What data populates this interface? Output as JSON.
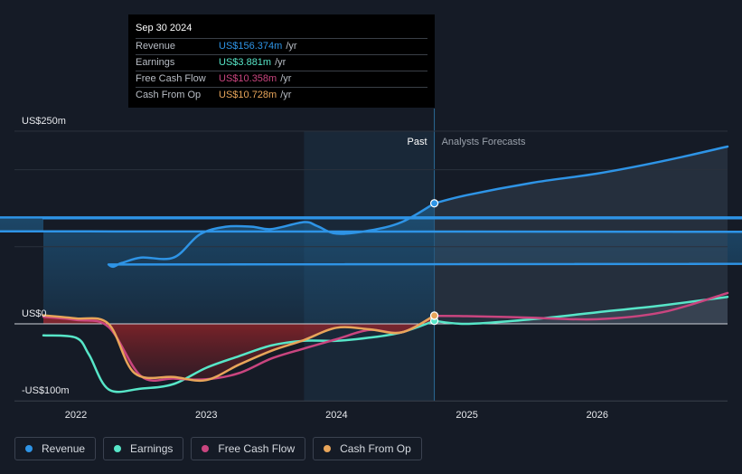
{
  "chart_data": {
    "type": "line",
    "x_start": 2021.75,
    "x_end": 2027.0,
    "divider_x": 2024.75,
    "highlight_start": 2023.75,
    "ylim": [
      -100,
      250
    ],
    "y_ticks": [
      {
        "label": "US$250m",
        "value": 250
      },
      {
        "label": "US$0",
        "value": 0
      },
      {
        "label": "-US$100m",
        "value": -100
      }
    ],
    "gridlines": [
      250,
      200,
      100,
      0
    ],
    "x_ticks": [
      {
        "label": "2022",
        "value": 2022.0
      },
      {
        "label": "2023",
        "value": 2023.0
      },
      {
        "label": "2024",
        "value": 2024.0
      },
      {
        "label": "2025",
        "value": 2025.0
      },
      {
        "label": "2026",
        "value": 2026.0
      }
    ],
    "past_label": "Past",
    "forecast_label": "Analysts Forecasts",
    "series": [
      {
        "name": "Revenue",
        "color": "#2e94e6",
        "area": true,
        "points": [
          [
            2021.75,
            137
          ],
          [
            2021.85,
            138
          ],
          [
            222.0,
            138
          ],
          [
            2022.1,
            120
          ],
          [
            2022.25,
            77
          ],
          [
            2022.35,
            79
          ],
          [
            2022.5,
            86
          ],
          [
            2022.75,
            86
          ],
          [
            2022.95,
            116
          ],
          [
            2023.15,
            126
          ],
          [
            2023.35,
            126
          ],
          [
            2023.5,
            123
          ],
          [
            2023.75,
            132
          ],
          [
            2023.85,
            127
          ],
          [
            2024.0,
            117
          ],
          [
            2024.25,
            121
          ],
          [
            2024.5,
            132
          ],
          [
            2024.75,
            156.374
          ]
        ],
        "forecast": [
          [
            2024.75,
            156.374
          ],
          [
            2025.0,
            167
          ],
          [
            2025.5,
            183
          ],
          [
            2026.0,
            195
          ],
          [
            2026.5,
            211
          ],
          [
            2027.0,
            230
          ]
        ]
      },
      {
        "name": "Earnings",
        "color": "#57e6c8",
        "points": [
          [
            2021.75,
            -15
          ],
          [
            2022.0,
            -18
          ],
          [
            2022.1,
            -40
          ],
          [
            2022.25,
            -85
          ],
          [
            2022.5,
            -84
          ],
          [
            2022.75,
            -78
          ],
          [
            2023.0,
            -57
          ],
          [
            2023.25,
            -42
          ],
          [
            2023.5,
            -28
          ],
          [
            2023.75,
            -22
          ],
          [
            2024.0,
            -22
          ],
          [
            2024.25,
            -18
          ],
          [
            2024.5,
            -11
          ],
          [
            2024.75,
            3.881
          ]
        ],
        "forecast": [
          [
            2024.75,
            3.881
          ],
          [
            2025.0,
            0
          ],
          [
            2025.5,
            6
          ],
          [
            2026.0,
            15
          ],
          [
            2026.5,
            24
          ],
          [
            2027.0,
            35
          ]
        ]
      },
      {
        "name": "Free Cash Flow",
        "color": "#c9457f",
        "points": [
          [
            2021.75,
            9
          ],
          [
            2022.0,
            5
          ],
          [
            2022.25,
            -4
          ],
          [
            2022.5,
            -68
          ],
          [
            2022.75,
            -71
          ],
          [
            2023.0,
            -72
          ],
          [
            2023.25,
            -64
          ],
          [
            2023.5,
            -45
          ],
          [
            2023.75,
            -32
          ],
          [
            2024.0,
            -20
          ],
          [
            2024.25,
            -8
          ],
          [
            2024.5,
            -11
          ],
          [
            2024.75,
            10.358
          ]
        ],
        "forecast": [
          [
            2024.75,
            10.358
          ],
          [
            2025.0,
            10
          ],
          [
            2025.5,
            8
          ],
          [
            2026.0,
            6
          ],
          [
            2026.5,
            15
          ],
          [
            2027.0,
            40
          ]
        ]
      },
      {
        "name": "Cash From Op",
        "color": "#e8a55a",
        "points": [
          [
            2021.75,
            11
          ],
          [
            2022.0,
            7
          ],
          [
            2022.25,
            0
          ],
          [
            2022.45,
            -64
          ],
          [
            2022.75,
            -69
          ],
          [
            2023.0,
            -73
          ],
          [
            2023.25,
            -53
          ],
          [
            2023.5,
            -35
          ],
          [
            2023.75,
            -21
          ],
          [
            2024.0,
            -5
          ],
          [
            2024.25,
            -7
          ],
          [
            2024.5,
            -11
          ],
          [
            2024.75,
            10.728
          ]
        ]
      }
    ]
  },
  "tooltip": {
    "date": "Sep 30 2024",
    "rows": [
      {
        "label": "Revenue",
        "value": "US$156.374m",
        "unit": "/yr",
        "color": "#2e94e6"
      },
      {
        "label": "Earnings",
        "value": "US$3.881m",
        "unit": "/yr",
        "color": "#57e6c8"
      },
      {
        "label": "Free Cash Flow",
        "value": "US$10.358m",
        "unit": "/yr",
        "color": "#c9457f"
      },
      {
        "label": "Cash From Op",
        "value": "US$10.728m",
        "unit": "/yr",
        "color": "#e8a55a"
      }
    ]
  },
  "legend": [
    {
      "label": "Revenue",
      "color": "#2e94e6"
    },
    {
      "label": "Earnings",
      "color": "#57e6c8"
    },
    {
      "label": "Free Cash Flow",
      "color": "#c9457f"
    },
    {
      "label": "Cash From Op",
      "color": "#e8a55a"
    }
  ]
}
